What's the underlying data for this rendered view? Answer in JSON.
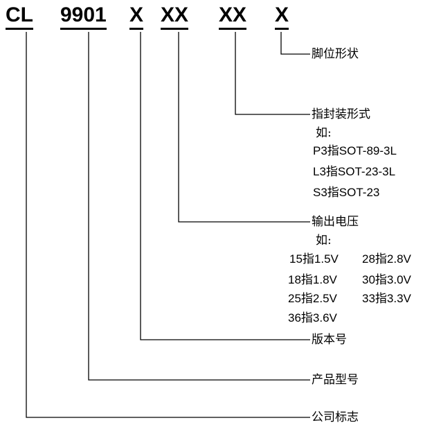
{
  "code_segments": {
    "company": "CL",
    "model": "9901",
    "version": "X",
    "voltage": "XX",
    "package": "XX",
    "pin": "X"
  },
  "labels": {
    "pin_shape": "脚位形状",
    "package_form": "指封装形式",
    "output_voltage": "输出电压",
    "version_number": "版本号",
    "product_model": "产品型号",
    "company_logo": "公司标志"
  },
  "package_examples": {
    "prefix": "如:",
    "items": [
      "P3指SOT-89-3L",
      "L3指SOT-23-3L",
      "S3指SOT-23"
    ]
  },
  "voltage_examples": {
    "prefix": "如:",
    "left": [
      "15指1.5V",
      "18指1.8V",
      "25指2.5V",
      "36指3.6V"
    ],
    "right": [
      "28指2.8V",
      "30指3.0V",
      "33指3.3V"
    ]
  }
}
